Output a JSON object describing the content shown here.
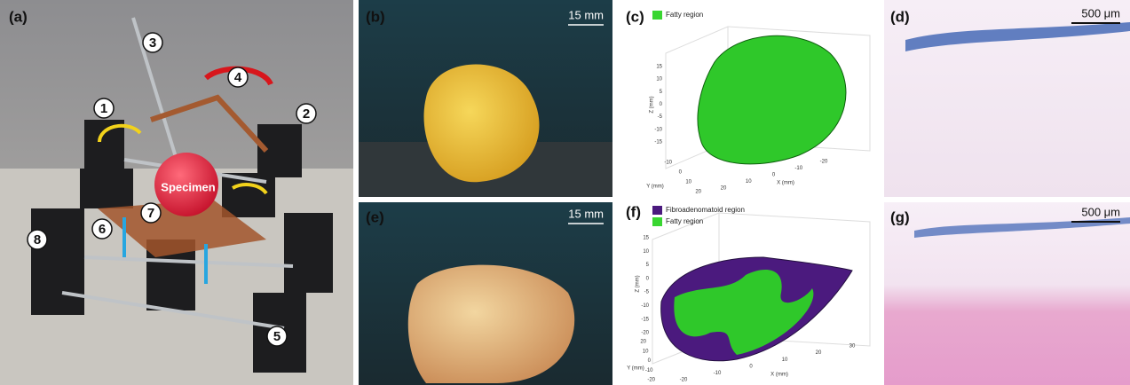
{
  "panels": {
    "a": {
      "label": "(a)",
      "markers": [
        "1",
        "2",
        "3",
        "4",
        "5",
        "6",
        "7",
        "8"
      ],
      "specimen": "Specimen"
    },
    "b": {
      "label": "(b)",
      "scale": "15 mm"
    },
    "c": {
      "label": "(c)",
      "legend": [
        "Fatty region"
      ],
      "axes": {
        "z_label": "Z (mm)",
        "y_label": "Y (mm)",
        "x_label": "X (mm)",
        "z_ticks": [
          15,
          10,
          5,
          0,
          -5,
          -10,
          -15
        ],
        "y_ticks": [
          -10,
          0,
          10,
          20
        ],
        "x_ticks": [
          20,
          10,
          0,
          -10,
          -20
        ]
      }
    },
    "d": {
      "label": "(d)",
      "scale": "500 μm"
    },
    "e": {
      "label": "(e)",
      "scale": "15 mm"
    },
    "f": {
      "label": "(f)",
      "legend": [
        "Fibroadenomatoid region",
        "Fatty region"
      ],
      "axes": {
        "z_label": "Z (mm)",
        "y_label": "Y (mm)",
        "x_label": "X (mm)",
        "z_ticks": [
          15,
          10,
          5,
          0,
          -5,
          -10,
          -15,
          -20
        ],
        "y_ticks": [
          20,
          10,
          0,
          -10,
          -20
        ],
        "x_ticks": [
          -20,
          -10,
          0,
          10,
          20,
          30
        ]
      }
    },
    "g": {
      "label": "(g)",
      "scale": "500 μm"
    }
  }
}
